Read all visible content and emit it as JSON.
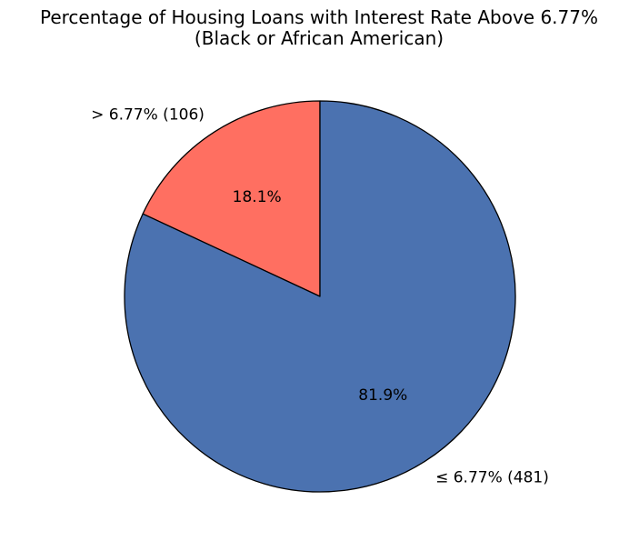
{
  "chart_data": {
    "type": "pie",
    "title": "Percentage of Housing Loans with Interest Rate Above 6.77%",
    "subtitle": "(Black or African American)",
    "start_angle_deg": 90,
    "direction": "counterclockwise",
    "slices": [
      {
        "category": "> 6.77%",
        "count": 106,
        "label": "> 6.77% (106)",
        "percent": 18.1,
        "percent_label": "18.1%",
        "color": "#ff6f61"
      },
      {
        "category": "≤ 6.77%",
        "count": 481,
        "label": "≤ 6.77% (481)",
        "percent": 81.9,
        "percent_label": "81.9%",
        "color": "#4b72b0"
      }
    ],
    "edge_color": "#000000"
  }
}
